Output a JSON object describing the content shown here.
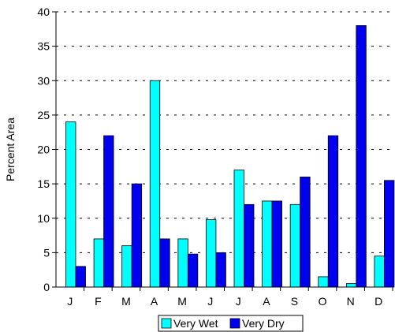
{
  "chart_data": {
    "type": "bar",
    "ylabel": "Percent Area",
    "xlabel": "",
    "ylim": [
      0,
      40
    ],
    "yticks": [
      0,
      5,
      10,
      15,
      20,
      25,
      30,
      35,
      40
    ],
    "grid": true,
    "legend_position": "bottom",
    "categories": [
      "J",
      "F",
      "M",
      "A",
      "M",
      "J",
      "J",
      "A",
      "S",
      "O",
      "N",
      "D"
    ],
    "series": [
      {
        "name": "Very Wet",
        "color": "#00FFFF",
        "values": [
          24,
          7,
          6,
          30,
          7,
          9.8,
          17,
          12.5,
          12,
          1.5,
          0.5,
          4.5
        ]
      },
      {
        "name": "Very Dry",
        "color": "#0000EE",
        "values": [
          3,
          22,
          15,
          7,
          4.8,
          5,
          12,
          12.5,
          16,
          22,
          38,
          15.5
        ]
      }
    ]
  }
}
